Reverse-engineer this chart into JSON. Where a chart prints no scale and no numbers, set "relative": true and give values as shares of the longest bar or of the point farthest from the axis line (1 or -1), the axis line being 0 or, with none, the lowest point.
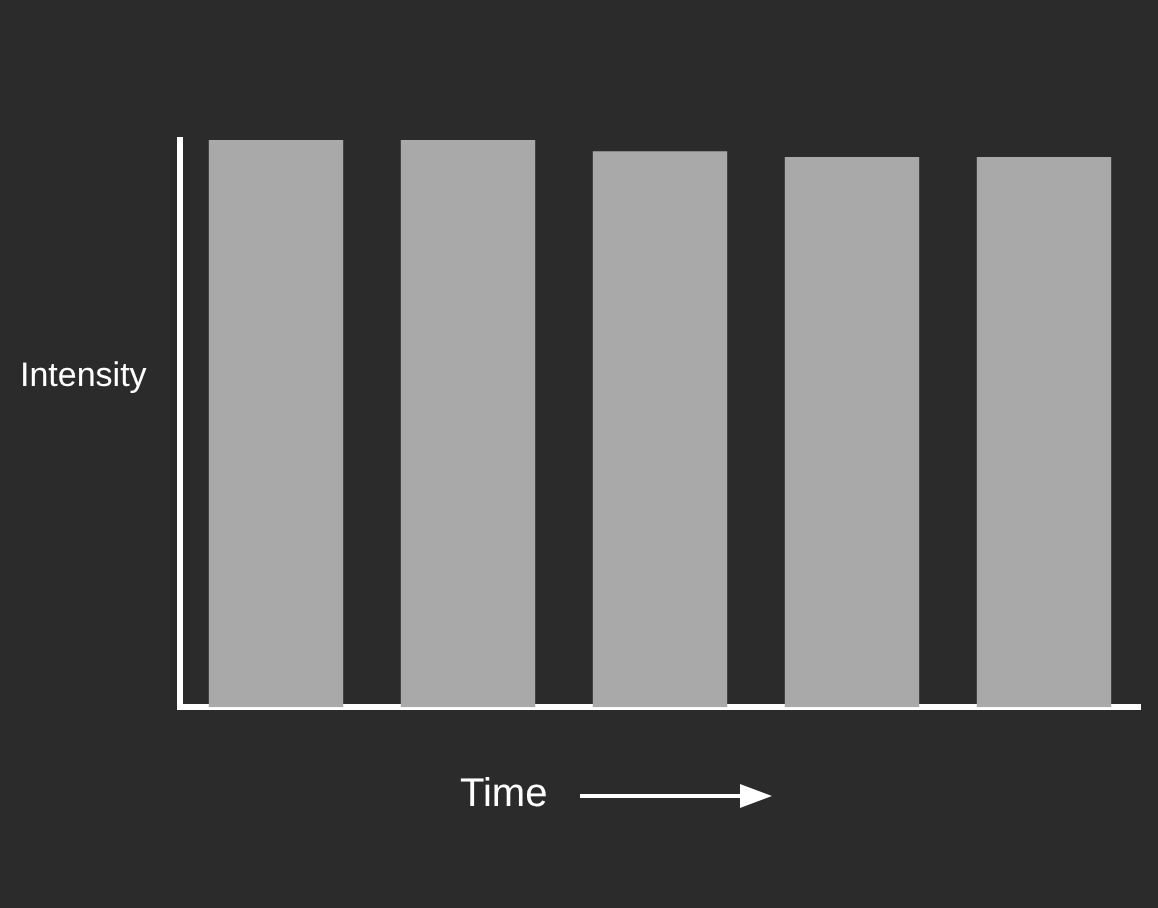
{
  "chart_data": {
    "type": "bar",
    "relative": true,
    "xlabel": "Time",
    "ylabel": "Intensity",
    "categories": [
      null,
      null,
      null,
      null,
      null
    ],
    "values": [
      1,
      1,
      0.98,
      0.97,
      0.97
    ],
    "color": "#a9a9a9",
    "grid": false,
    "legend": false
  }
}
